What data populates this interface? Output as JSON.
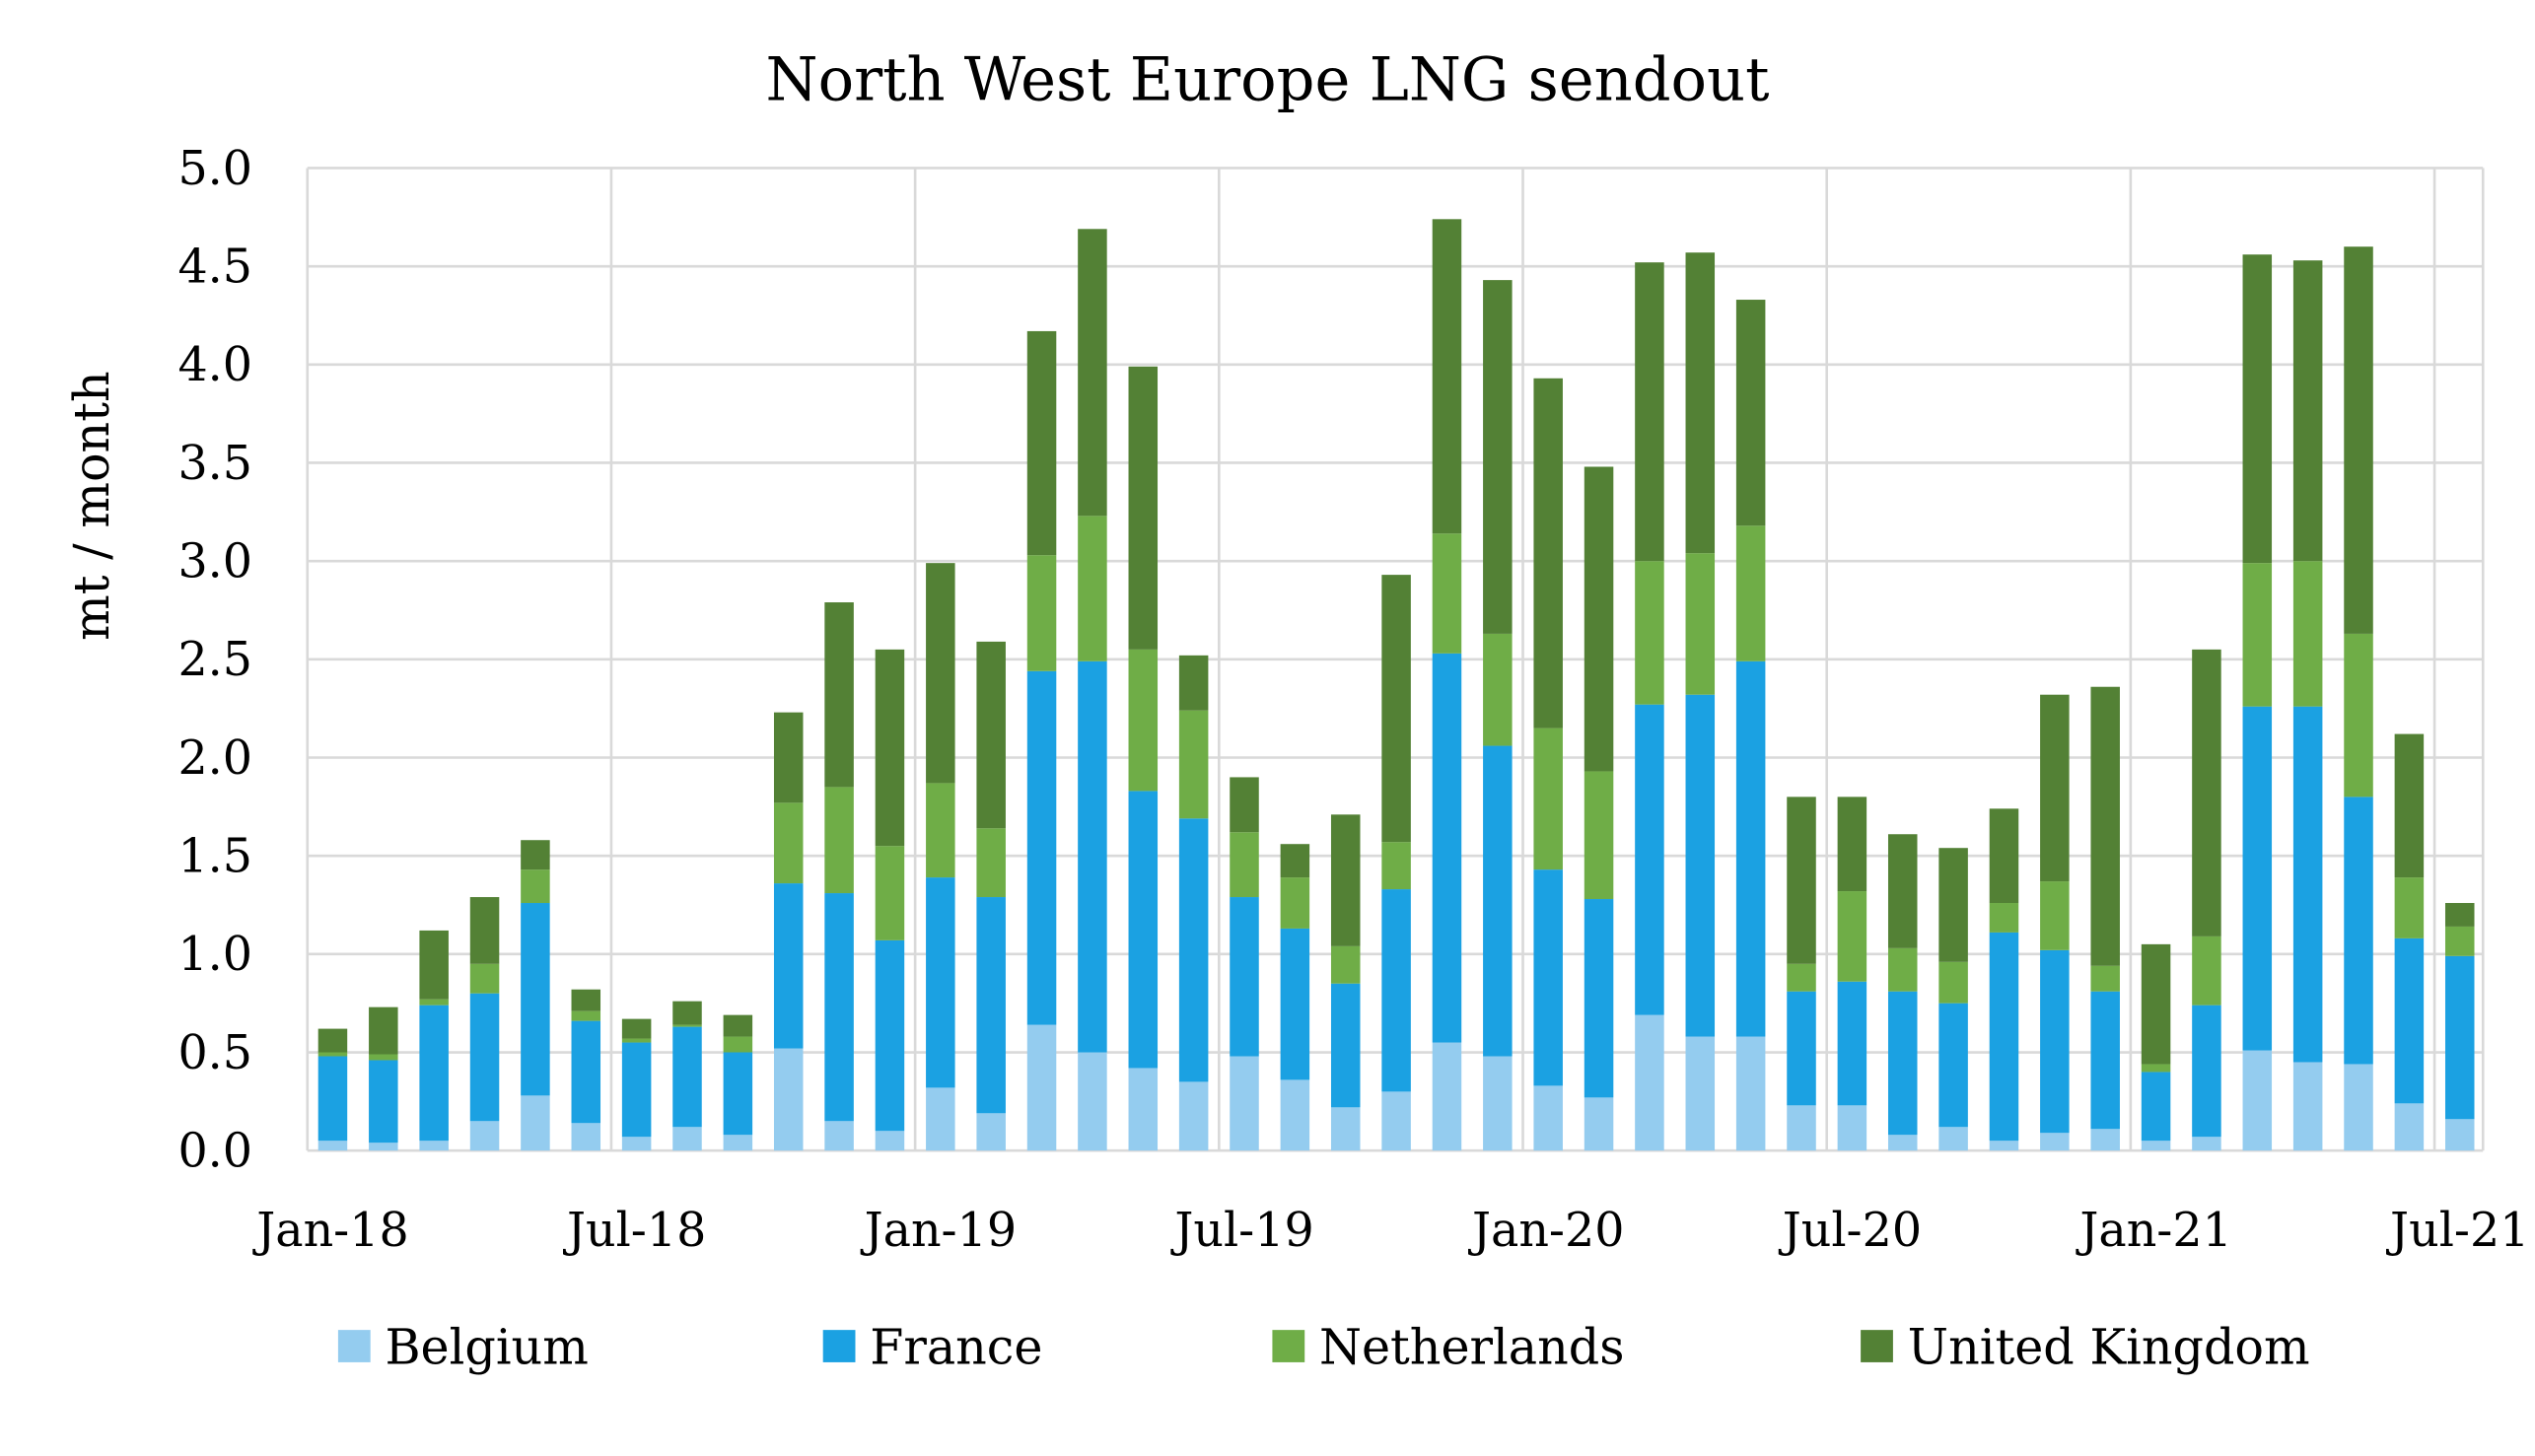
{
  "chart_data": {
    "type": "bar",
    "stacked": true,
    "title": "North West Europe LNG sendout",
    "xlabel": "",
    "ylabel": "mt / month",
    "ylim": [
      0,
      5
    ],
    "yticks": [
      "0.0",
      "0.5",
      "1.0",
      "1.5",
      "2.0",
      "2.5",
      "3.0",
      "3.5",
      "4.0",
      "4.5",
      "5.0"
    ],
    "xtick_labels": [
      "Jan-18",
      "Jul-18",
      "Jan-19",
      "Jul-19",
      "Jan-20",
      "Jul-20",
      "Jan-21",
      "Jul-21"
    ],
    "grid": true,
    "legend_position": "bottom",
    "categories": [
      "Jan-18",
      "Feb-18",
      "Mar-18",
      "Apr-18",
      "May-18",
      "Jun-18",
      "Jul-18",
      "Aug-18",
      "Sep-18",
      "Oct-18",
      "Nov-18",
      "Dec-18",
      "Jan-19",
      "Feb-19",
      "Mar-19",
      "Apr-19",
      "May-19",
      "Jun-19",
      "Jul-19",
      "Aug-19",
      "Sep-19",
      "Oct-19",
      "Nov-19",
      "Dec-19",
      "Jan-20",
      "Feb-20",
      "Mar-20",
      "Apr-20",
      "May-20",
      "Jun-20",
      "Jul-20",
      "Aug-20",
      "Sep-20",
      "Oct-20",
      "Nov-20",
      "Dec-20",
      "Jan-21",
      "Feb-21",
      "Mar-21",
      "Apr-21",
      "May-21",
      "Jun-21",
      "Jul-21"
    ],
    "series": [
      {
        "name": "Belgium",
        "color": "#94CCEF",
        "values": [
          0.05,
          0.04,
          0.05,
          0.15,
          0.28,
          0.14,
          0.07,
          0.12,
          0.08,
          0.52,
          0.15,
          0.1,
          0.32,
          0.19,
          0.64,
          0.5,
          0.42,
          0.35,
          0.48,
          0.36,
          0.22,
          0.3,
          0.55,
          0.48,
          0.33,
          0.27,
          0.69,
          0.58,
          0.58,
          0.23,
          0.23,
          0.08,
          0.12,
          0.05,
          0.09,
          0.11,
          0.05,
          0.07,
          0.51,
          0.45,
          0.44,
          0.24,
          0.16
        ]
      },
      {
        "name": "France",
        "color": "#1BA1E2",
        "values": [
          0.43,
          0.42,
          0.69,
          0.65,
          0.98,
          0.52,
          0.48,
          0.51,
          0.42,
          0.84,
          1.16,
          0.97,
          1.07,
          1.1,
          1.8,
          1.99,
          1.41,
          1.34,
          0.81,
          0.77,
          0.63,
          1.03,
          1.98,
          1.58,
          1.1,
          1.01,
          1.58,
          1.74,
          1.91,
          0.58,
          0.63,
          0.73,
          0.63,
          1.06,
          0.93,
          0.7,
          0.35,
          0.67,
          1.75,
          1.81,
          1.36,
          0.84,
          0.83
        ]
      },
      {
        "name": "Netherlands",
        "color": "#6FAD47",
        "values": [
          0.02,
          0.03,
          0.03,
          0.15,
          0.17,
          0.05,
          0.02,
          0.01,
          0.08,
          0.41,
          0.54,
          0.48,
          0.48,
          0.35,
          0.59,
          0.74,
          0.72,
          0.55,
          0.33,
          0.26,
          0.19,
          0.24,
          0.61,
          0.57,
          0.72,
          0.65,
          0.73,
          0.72,
          0.69,
          0.14,
          0.46,
          0.22,
          0.21,
          0.15,
          0.35,
          0.13,
          0.04,
          0.35,
          0.73,
          0.74,
          0.83,
          0.31,
          0.15
        ]
      },
      {
        "name": "United Kingdom",
        "color": "#538135",
        "values": [
          0.12,
          0.24,
          0.35,
          0.34,
          0.15,
          0.11,
          0.1,
          0.12,
          0.11,
          0.46,
          0.94,
          1.0,
          1.12,
          0.95,
          1.14,
          1.46,
          1.44,
          0.28,
          0.28,
          0.17,
          0.67,
          1.36,
          1.6,
          1.8,
          1.78,
          1.55,
          1.52,
          1.53,
          1.15,
          0.85,
          0.48,
          0.58,
          0.58,
          0.48,
          0.95,
          1.42,
          0.61,
          1.46,
          1.57,
          1.53,
          1.97,
          0.73,
          0.12
        ]
      }
    ]
  }
}
